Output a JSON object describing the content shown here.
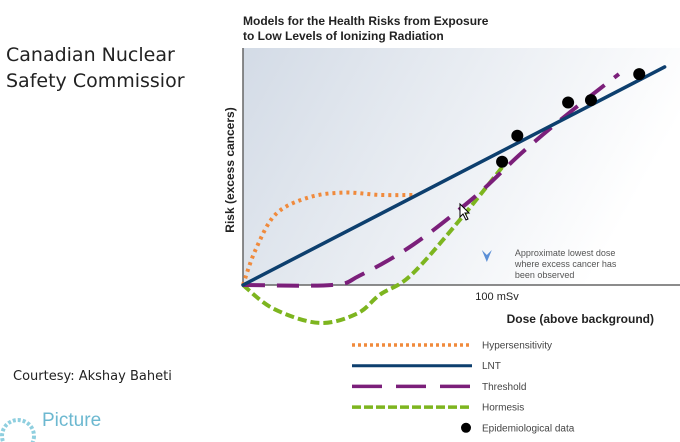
{
  "slide": {
    "heading": [
      "Canadian Nuclear",
      "Safety Commissior"
    ],
    "courtesy": "Courtesy: Akshay Baheti",
    "logo_text": "Picture"
  },
  "chart_data": {
    "type": "line",
    "title": [
      "Models for the Health Risks from Exposure",
      "to Low Levels of Ionizing Radiation"
    ],
    "xlabel": "Dose (above background)",
    "ylabel": "Risk (excess cancers)",
    "x_tick_label": "100 mSv",
    "x_tick_value": 100,
    "xlim": [
      0,
      172
    ],
    "ylim": [
      -20,
      100
    ],
    "grid": false,
    "legend_placement": "bottom",
    "annotation": {
      "text": [
        "Approximate lowest dose",
        "where excess cancer has",
        "been observed"
      ],
      "x": 96,
      "color": "#5b8fd6"
    },
    "series": [
      {
        "name": "Hypersensitivity",
        "style": "dotted",
        "color": "#f08a3c",
        "x": [
          0,
          5,
          13,
          26,
          40,
          54,
          68
        ],
        "y": [
          0,
          15,
          30,
          37,
          39,
          38,
          38
        ]
      },
      {
        "name": "LNT",
        "style": "solid",
        "color": "#0d3f6e",
        "x": [
          0,
          166
        ],
        "y": [
          0,
          92
        ]
      },
      {
        "name": "Threshold",
        "style": "dashed",
        "color": "#7b1f7a",
        "x": [
          0,
          35,
          46,
          67,
          91,
          110,
          130,
          148
        ],
        "y": [
          0,
          0,
          4,
          17,
          37,
          56,
          74,
          89
        ]
      },
      {
        "name": "Hormesis",
        "style": "dashed-short",
        "color": "#7db51f",
        "x": [
          0,
          12,
          30,
          45,
          54,
          66,
          85,
          103
        ],
        "y": [
          0,
          -10,
          -16,
          -12,
          -4,
          4,
          27,
          51
        ]
      },
      {
        "name": "Epidemiological data",
        "style": "points",
        "color": "#000000",
        "x": [
          102,
          108,
          128,
          137,
          156
        ],
        "y": [
          52,
          63,
          77,
          78,
          89
        ]
      }
    ]
  }
}
